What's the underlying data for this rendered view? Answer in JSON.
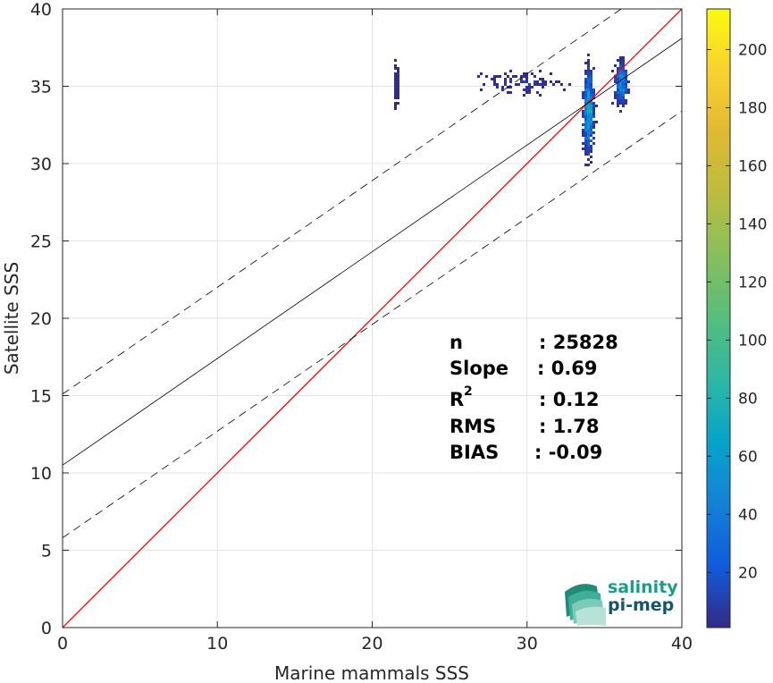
{
  "chart_data": {
    "type": "heatmap",
    "xlabel": "Marine mammals SSS",
    "ylabel": "Satellite SSS",
    "xlim": [
      0,
      40
    ],
    "ylim": [
      0,
      40
    ],
    "xticks": [
      0,
      10,
      20,
      30,
      40
    ],
    "yticks": [
      0,
      5,
      10,
      15,
      20,
      25,
      30,
      35,
      40
    ],
    "grid": true,
    "colorbar": {
      "range": [
        1,
        214
      ],
      "ticks": [
        20,
        40,
        60,
        80,
        100,
        120,
        140,
        160,
        180,
        200
      ],
      "colormap": "parula"
    },
    "reference_line": {
      "name": "1:1",
      "slope": 1,
      "intercept": 0,
      "color": "#ff0000"
    },
    "fit_line": {
      "slope": 0.69,
      "intercept": 10.5,
      "color": "#000000"
    },
    "confidence_lines": [
      {
        "slope": 0.69,
        "intercept": 15.1,
        "style": "dashed"
      },
      {
        "slope": 0.69,
        "intercept": 5.8,
        "style": "dashed"
      }
    ],
    "density_clusters": [
      {
        "x_center": 33.9,
        "y_center": 33.5,
        "x_spread": 0.25,
        "y_spread": 2.2,
        "peak_count": 80
      },
      {
        "x_center": 36.0,
        "y_center": 35.3,
        "x_spread": 0.3,
        "y_spread": 1.1,
        "peak_count": 60
      },
      {
        "x_center": 29.5,
        "y_center": 35.3,
        "x_spread": 2.0,
        "y_spread": 0.6,
        "peak_count": 8
      },
      {
        "x_center": 21.5,
        "y_center": 35.2,
        "x_spread": 0.1,
        "y_spread": 1.2,
        "peak_count": 3
      }
    ],
    "stats": [
      {
        "label": "n",
        "value": ": 25828"
      },
      {
        "label": "Slope",
        "value": ": 0.69"
      },
      {
        "label": "R",
        "sup": "2",
        "value": ": 0.12"
      },
      {
        "label": "RMS",
        "value": ": 1.78"
      },
      {
        "label": "BIAS",
        "value": ": -0.09"
      }
    ]
  },
  "logo": {
    "line1": "salinity",
    "line2": "pi-mep"
  },
  "colors": {
    "logo_teal": "#1a9e8a",
    "logo_dark": "#17566a"
  }
}
